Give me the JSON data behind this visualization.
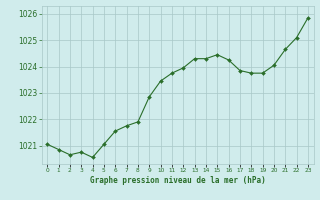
{
  "x": [
    0,
    1,
    2,
    3,
    4,
    5,
    6,
    7,
    8,
    9,
    10,
    11,
    12,
    13,
    14,
    15,
    16,
    17,
    18,
    19,
    20,
    21,
    22,
    23
  ],
  "y": [
    1021.05,
    1020.85,
    1020.65,
    1020.75,
    1020.55,
    1021.05,
    1021.55,
    1021.75,
    1021.9,
    1022.85,
    1023.45,
    1023.75,
    1023.95,
    1024.3,
    1024.3,
    1024.45,
    1024.25,
    1023.85,
    1023.75,
    1023.75,
    1024.05,
    1024.65,
    1025.1,
    1025.85
  ],
  "line_color": "#2a6e2a",
  "marker_color": "#2a6e2a",
  "bg_color": "#d0ecec",
  "grid_color": "#a8c8c8",
  "title": "Graphe pression niveau de la mer (hPa)",
  "title_color": "#2a6e2a",
  "yticks": [
    1021,
    1022,
    1023,
    1024,
    1025,
    1026
  ],
  "xtick_labels": [
    "0",
    "1",
    "2",
    "3",
    "4",
    "5",
    "6",
    "7",
    "8",
    "9",
    "10",
    "11",
    "12",
    "13",
    "14",
    "15",
    "16",
    "17",
    "18",
    "19",
    "20",
    "21",
    "22",
    "23"
  ],
  "ylim": [
    1020.3,
    1026.3
  ],
  "xlim": [
    -0.5,
    23.5
  ]
}
